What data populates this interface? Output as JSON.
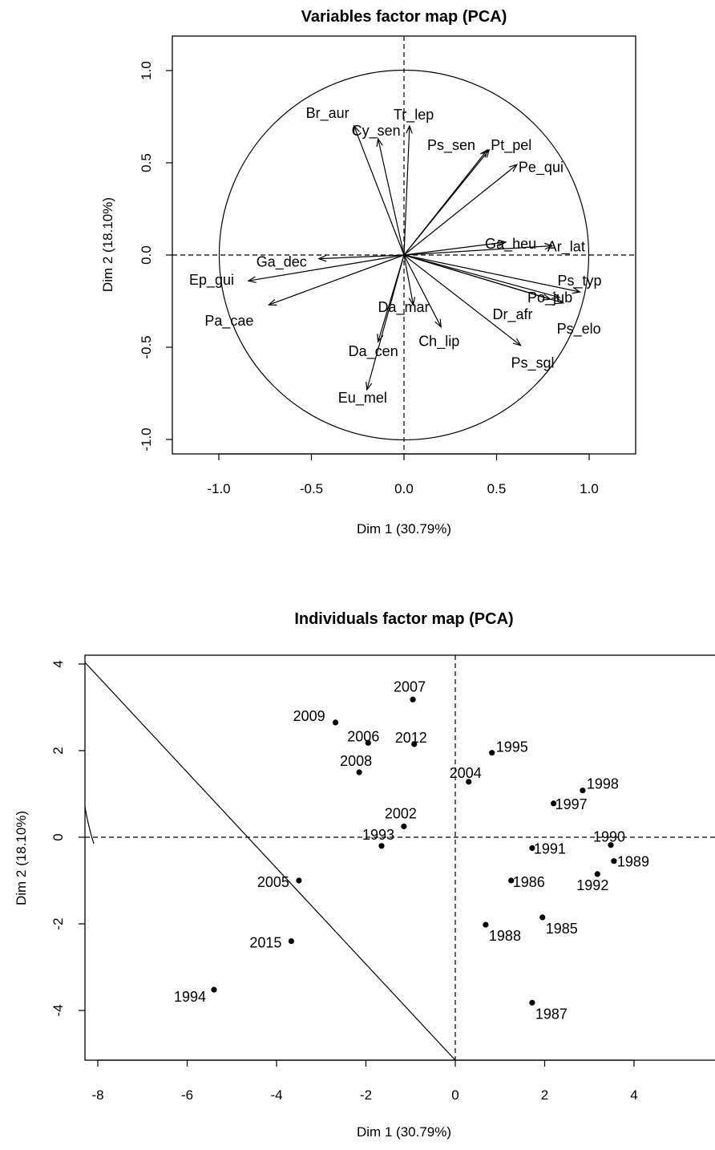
{
  "chart_data": [
    {
      "type": "scatter",
      "variant": "variables-factor-map",
      "title": "Variables factor map (PCA)",
      "xlabel": "Dim 1 (30.79%)",
      "ylabel": "Dim 2 (18.10%)",
      "xlim": [
        -1.25,
        1.25
      ],
      "ylim": [
        -1.07,
        1.07
      ],
      "xticks": [
        -1.0,
        -0.5,
        0.0,
        0.5,
        1.0
      ],
      "yticks": [
        -1.0,
        -0.5,
        0.0,
        0.5,
        1.0
      ],
      "xtick_labels": [
        "-1.0",
        "-0.5",
        "0.0",
        "0.5",
        "1.0"
      ],
      "ytick_labels": [
        "-1.0",
        "-0.5",
        "0.0",
        "0.5",
        "1.0"
      ],
      "unit_circle": true,
      "vectors": [
        {
          "name": "Br_aur",
          "x": -0.27,
          "y": 0.7
        },
        {
          "name": "Tr_lep",
          "x": 0.03,
          "y": 0.7
        },
        {
          "name": "Cy_sen",
          "x": -0.14,
          "y": 0.63
        },
        {
          "name": "Ps_sen",
          "x": 0.45,
          "y": 0.57
        },
        {
          "name": "Pt_pel",
          "x": 0.46,
          "y": 0.57
        },
        {
          "name": "Pe_qui",
          "x": 0.61,
          "y": 0.49
        },
        {
          "name": "Ga_heu",
          "x": 0.55,
          "y": 0.07
        },
        {
          "name": "Ar_lat",
          "x": 0.8,
          "y": 0.05
        },
        {
          "name": "Ps_typ",
          "x": 0.95,
          "y": -0.2
        },
        {
          "name": "Po_jub",
          "x": 0.84,
          "y": -0.23
        },
        {
          "name": "Dr_afr",
          "x": 0.79,
          "y": -0.24
        },
        {
          "name": "Ps_elo",
          "x": 0.86,
          "y": -0.26
        },
        {
          "name": "Ps_sgl",
          "x": 0.63,
          "y": -0.49
        },
        {
          "name": "Ch_lip",
          "x": 0.2,
          "y": -0.39
        },
        {
          "name": "Da_mar",
          "x": 0.05,
          "y": -0.27
        },
        {
          "name": "Da_cen",
          "x": -0.14,
          "y": -0.47
        },
        {
          "name": "Eu_mel",
          "x": -0.2,
          "y": -0.73
        },
        {
          "name": "Ga_dec",
          "x": -0.46,
          "y": -0.02
        },
        {
          "name": "Ep_gui",
          "x": -0.84,
          "y": -0.14
        },
        {
          "name": "Pa_cae",
          "x": -0.73,
          "y": -0.27
        }
      ]
    },
    {
      "type": "scatter",
      "variant": "individuals-factor-map",
      "title": "Individuals factor map (PCA)",
      "xlabel": "Dim 1 (30.79%)",
      "ylabel": "Dim 2 (18.10%)",
      "xlim": [
        -8.2,
        5.8
      ],
      "ylim": [
        -4.85,
        4.3
      ],
      "xticks": [
        -8,
        -6,
        -4,
        -2,
        0,
        2,
        4
      ],
      "yticks": [
        -4,
        -2,
        0,
        2,
        4
      ],
      "xtick_labels": [
        "-8",
        "-6",
        "-4",
        "-2",
        "0",
        "2",
        "4"
      ],
      "ytick_labels": [
        "-4",
        "-2",
        "0",
        "2",
        "4"
      ],
      "points": [
        {
          "name": "2007",
          "x": -0.95,
          "y": 3.18
        },
        {
          "name": "2009",
          "x": -2.68,
          "y": 2.65
        },
        {
          "name": "2006",
          "x": -1.95,
          "y": 2.18
        },
        {
          "name": "2012",
          "x": -0.92,
          "y": 2.15
        },
        {
          "name": "1995",
          "x": 0.82,
          "y": 1.95
        },
        {
          "name": "2008",
          "x": -2.15,
          "y": 1.5
        },
        {
          "name": "2004",
          "x": 0.3,
          "y": 1.28
        },
        {
          "name": "1998",
          "x": 2.85,
          "y": 1.08
        },
        {
          "name": "1997",
          "x": 2.2,
          "y": 0.78
        },
        {
          "name": "2002",
          "x": -1.15,
          "y": 0.25
        },
        {
          "name": "1993",
          "x": -1.65,
          "y": -0.2
        },
        {
          "name": "1990",
          "x": 3.48,
          "y": -0.18
        },
        {
          "name": "1991",
          "x": 1.72,
          "y": -0.25
        },
        {
          "name": "1989",
          "x": 3.55,
          "y": -0.55
        },
        {
          "name": "1992",
          "x": 3.18,
          "y": -0.85
        },
        {
          "name": "2005",
          "x": -3.5,
          "y": -1.0
        },
        {
          "name": "1986",
          "x": 1.25,
          "y": -1.0
        },
        {
          "name": "1985",
          "x": 1.95,
          "y": -1.85
        },
        {
          "name": "1988",
          "x": 0.68,
          "y": -2.02
        },
        {
          "name": "2015",
          "x": -3.67,
          "y": -2.4
        },
        {
          "name": "1994",
          "x": -5.4,
          "y": -3.52
        },
        {
          "name": "1987",
          "x": 1.72,
          "y": -3.82
        }
      ],
      "curve": "unit circle scaled to individuals space (partial arc visible at left)"
    }
  ]
}
